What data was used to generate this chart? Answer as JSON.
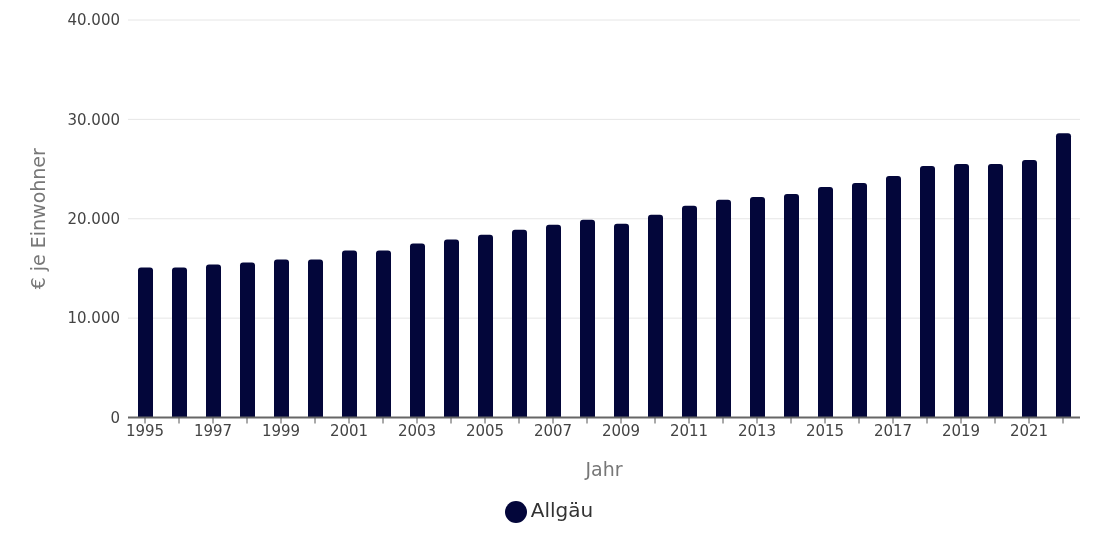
{
  "chart_data": {
    "type": "bar",
    "xlabel": "Jahr",
    "ylabel": "€ je Einwohner",
    "categories": [
      "1995",
      null,
      "1997",
      null,
      "1999",
      null,
      "2001",
      null,
      "2003",
      null,
      "2005",
      null,
      "2007",
      null,
      "2009",
      null,
      "2011",
      null,
      "2013",
      null,
      "2015",
      null,
      "2017",
      null,
      "2019",
      null,
      "2021",
      null
    ],
    "series": [
      {
        "name": "Allgäu",
        "color": "#03063a",
        "values": [
          15100,
          15100,
          15400,
          15600,
          15900,
          15900,
          16800,
          16800,
          17500,
          17900,
          18400,
          18900,
          19400,
          19900,
          19500,
          20400,
          21300,
          21900,
          22200,
          22500,
          23200,
          23600,
          24300,
          25300,
          25500,
          25500,
          25900,
          28600
        ]
      }
    ],
    "ylim": [
      0,
      40000
    ],
    "yticks": [
      {
        "value": 0,
        "label": "0"
      },
      {
        "value": 10000,
        "label": "10.000"
      },
      {
        "value": 20000,
        "label": "20.000"
      },
      {
        "value": 30000,
        "label": "30.000"
      },
      {
        "value": 40000,
        "label": "40.000"
      }
    ],
    "grid": "y",
    "legend": "bottom"
  }
}
